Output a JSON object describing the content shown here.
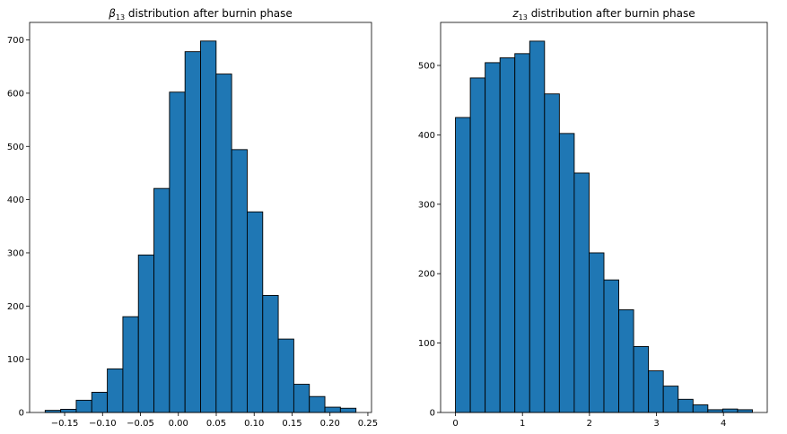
{
  "chart_data": [
    {
      "type": "bar",
      "title": {
        "symbol": "β",
        "subscript": "13",
        "rest": " distribution after burnin phase"
      },
      "xlabel": "",
      "ylabel": "",
      "bin_edges": [
        -0.1757,
        -0.1552,
        -0.1347,
        -0.1142,
        -0.0937,
        -0.0732,
        -0.0527,
        -0.0322,
        -0.0117,
        0.0088,
        0.0293,
        0.0498,
        0.0703,
        0.0908,
        0.1113,
        0.1318,
        0.1523,
        0.1728,
        0.1933,
        0.2138,
        0.2343
      ],
      "values": [
        4,
        6,
        23,
        38,
        82,
        180,
        296,
        421,
        602,
        678,
        698,
        636,
        494,
        377,
        220,
        138,
        53,
        30,
        10,
        8
      ],
      "xlim": [
        -0.1962,
        0.2548
      ],
      "ylim": [
        0,
        733
      ],
      "xticks": [
        -0.15,
        -0.1,
        -0.05,
        0.0,
        0.05,
        0.1,
        0.15,
        0.2,
        0.25
      ],
      "xtick_labels": [
        "−0.15",
        "−0.10",
        "−0.05",
        "0.00",
        "0.05",
        "0.10",
        "0.15",
        "0.20",
        "0.25"
      ],
      "yticks": [
        0,
        100,
        200,
        300,
        400,
        500,
        600,
        700
      ],
      "ytick_labels": [
        "0",
        "100",
        "200",
        "300",
        "400",
        "500",
        "600",
        "700"
      ],
      "grid": false,
      "colors": {
        "bar": "#1f77b4",
        "edge": "#000000"
      }
    },
    {
      "type": "bar",
      "title": {
        "symbol": "z",
        "subscript": "13",
        "rest": " distribution after burnin phase"
      },
      "xlabel": "",
      "ylabel": "",
      "bin_edges": [
        0.0,
        0.2216,
        0.4432,
        0.6648,
        0.8864,
        1.108,
        1.3296,
        1.5512,
        1.7728,
        1.9944,
        2.216,
        2.4376,
        2.6592,
        2.8808,
        3.1024,
        3.324,
        3.5456,
        3.7672,
        3.9888,
        4.2104,
        4.432
      ],
      "values": [
        425,
        482,
        504,
        511,
        517,
        535,
        459,
        402,
        345,
        230,
        191,
        148,
        95,
        60,
        38,
        19,
        11,
        4,
        5,
        4
      ],
      "xlim": [
        -0.2216,
        4.6536
      ],
      "ylim": [
        0,
        562
      ],
      "xticks": [
        0,
        1,
        2,
        3,
        4
      ],
      "xtick_labels": [
        "0",
        "1",
        "2",
        "3",
        "4"
      ],
      "yticks": [
        0,
        100,
        200,
        300,
        400,
        500
      ],
      "ytick_labels": [
        "0",
        "100",
        "200",
        "300",
        "400",
        "500"
      ],
      "grid": false,
      "colors": {
        "bar": "#1f77b4",
        "edge": "#000000"
      }
    }
  ]
}
